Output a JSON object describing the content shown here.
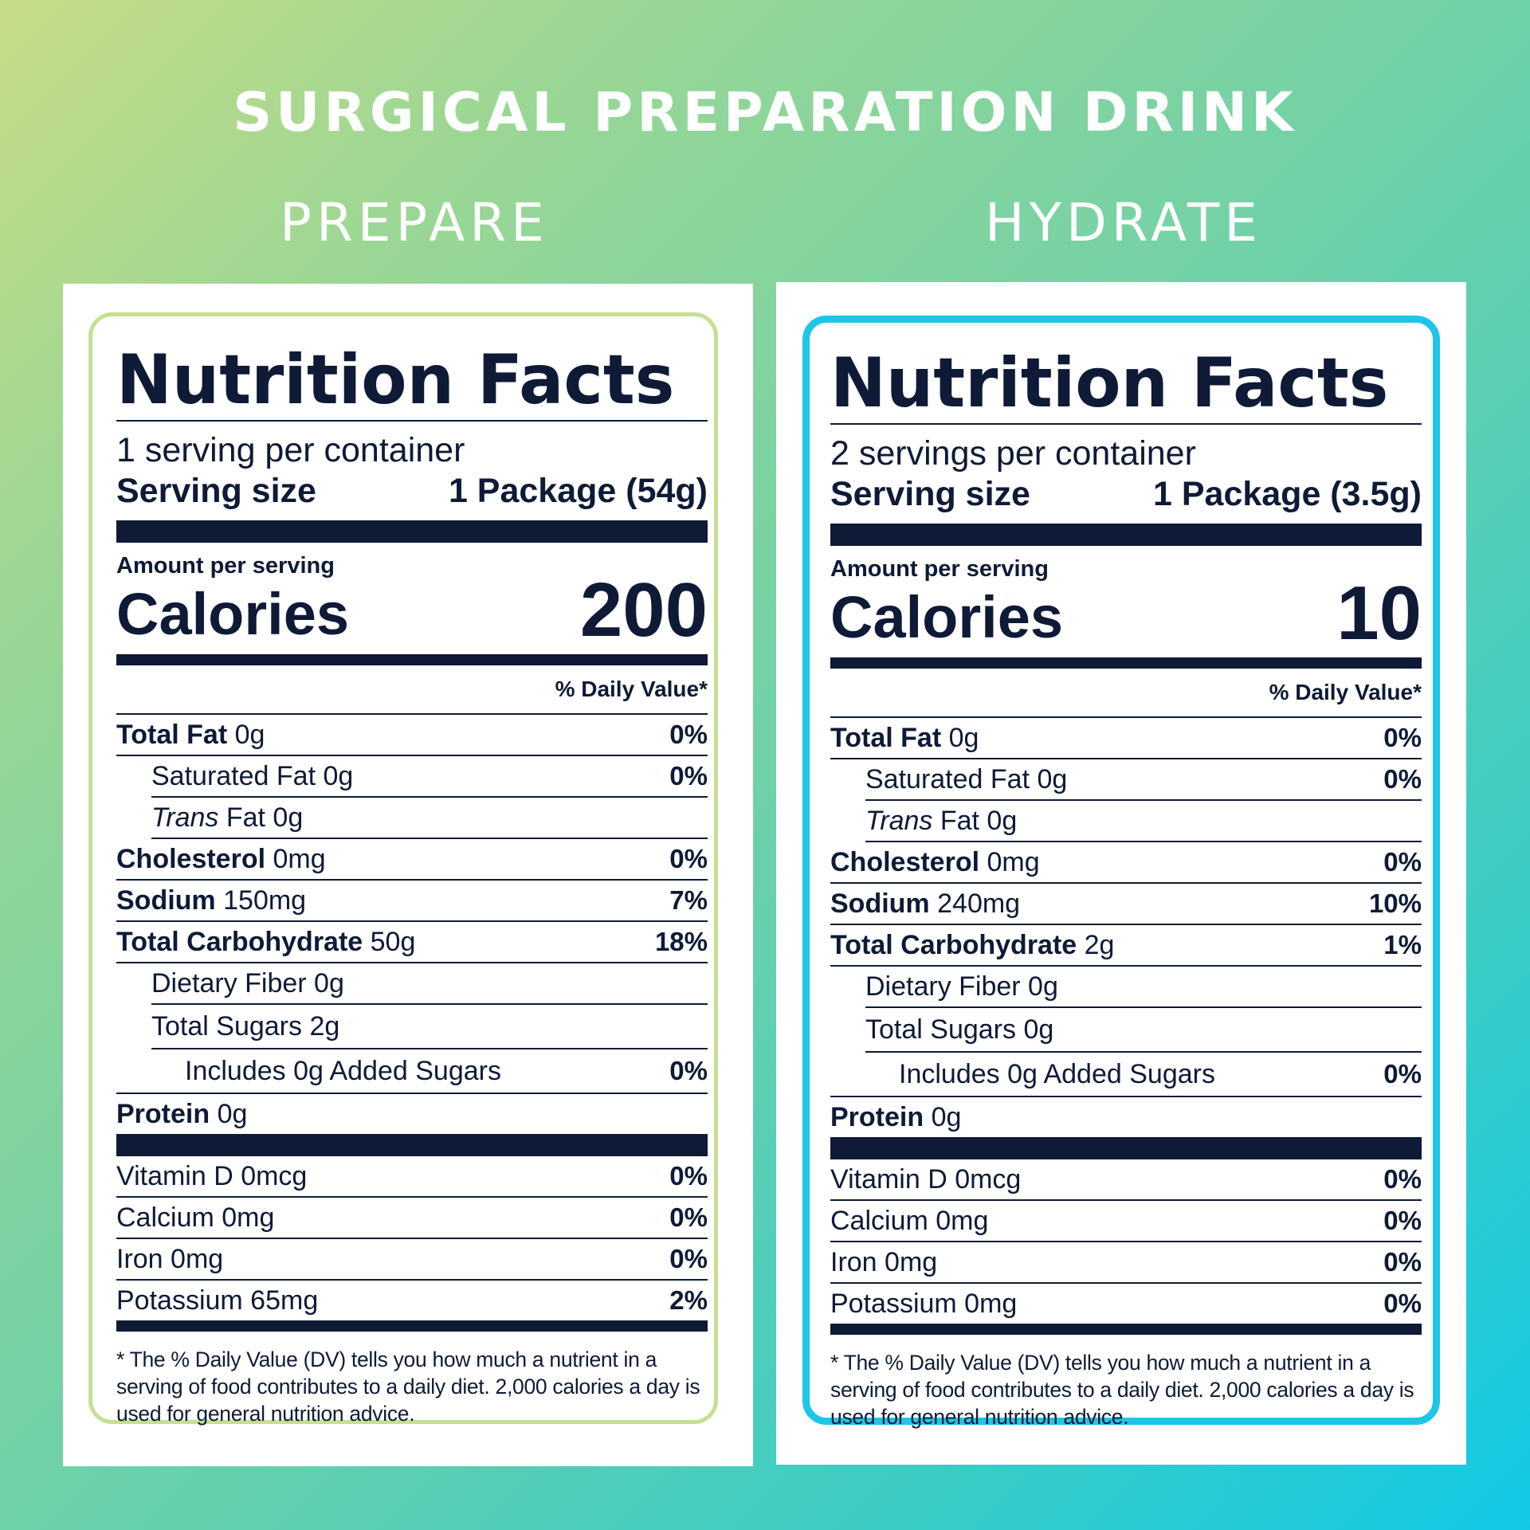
{
  "header": {
    "title": "SURGICAL PREPARATION DRINK"
  },
  "labels": [
    {
      "column_title": "PREPARE",
      "nf_title": "Nutrition Facts",
      "servings_per_container": "1 serving per container",
      "serving_size_label": "Serving size",
      "serving_size_value": "1 Package (54g)",
      "amount_per_serving": "Amount per serving",
      "calories_label": "Calories",
      "calories_value": "200",
      "daily_value_header": "% Daily Value*",
      "rows": {
        "total_fat": {
          "name": "Total Fat",
          "amount": "0g",
          "dv": "0%"
        },
        "saturated_fat": {
          "name": "Saturated Fat 0g",
          "dv": "0%"
        },
        "trans_fat": {
          "name_italic": "Trans",
          "name_rest": " Fat 0g"
        },
        "cholesterol": {
          "name": "Cholesterol",
          "amount": "0mg",
          "dv": "0%"
        },
        "sodium": {
          "name": "Sodium",
          "amount": "150mg",
          "dv": "7%"
        },
        "total_carbohydrate": {
          "name": "Total Carbohydrate",
          "amount": "50g",
          "dv": "18%"
        },
        "dietary_fiber": {
          "name": "Dietary Fiber 0g"
        },
        "total_sugars": {
          "name": "Total Sugars 2g"
        },
        "added_sugars": {
          "name": "Includes 0g Added Sugars",
          "dv": "0%"
        },
        "protein": {
          "name": "Protein",
          "amount": "0g"
        },
        "vitamin_d": {
          "name": "Vitamin D 0mcg",
          "dv": "0%"
        },
        "calcium": {
          "name": "Calcium 0mg",
          "dv": "0%"
        },
        "iron": {
          "name": "Iron 0mg",
          "dv": "0%"
        },
        "potassium": {
          "name": "Potassium 65mg",
          "dv": "2%"
        }
      },
      "footnote": "* The % Daily Value (DV) tells you how much a nutrient in a serving of food contributes to a daily diet. 2,000 calories a day is used for general nutrition advice.",
      "border_color": "#c6df92"
    },
    {
      "column_title": "HYDRATE",
      "nf_title": "Nutrition Facts",
      "servings_per_container": "2 servings per container",
      "serving_size_label": "Serving size",
      "serving_size_value": "1 Package (3.5g)",
      "amount_per_serving": "Amount per serving",
      "calories_label": "Calories",
      "calories_value": "10",
      "daily_value_header": "% Daily Value*",
      "rows": {
        "total_fat": {
          "name": "Total Fat",
          "amount": "0g",
          "dv": "0%"
        },
        "saturated_fat": {
          "name": "Saturated Fat 0g",
          "dv": "0%"
        },
        "trans_fat": {
          "name_italic": "Trans",
          "name_rest": " Fat 0g"
        },
        "cholesterol": {
          "name": "Cholesterol",
          "amount": "0mg",
          "dv": "0%"
        },
        "sodium": {
          "name": "Sodium",
          "amount": "240mg",
          "dv": "10%"
        },
        "total_carbohydrate": {
          "name": "Total Carbohydrate",
          "amount": "2g",
          "dv": "1%"
        },
        "dietary_fiber": {
          "name": "Dietary Fiber 0g"
        },
        "total_sugars": {
          "name": "Total Sugars 0g"
        },
        "added_sugars": {
          "name": "Includes 0g Added Sugars",
          "dv": "0%"
        },
        "protein": {
          "name": "Protein",
          "amount": "0g"
        },
        "vitamin_d": {
          "name": "Vitamin D 0mcg",
          "dv": "0%"
        },
        "calcium": {
          "name": "Calcium 0mg",
          "dv": "0%"
        },
        "iron": {
          "name": "Iron 0mg",
          "dv": "0%"
        },
        "potassium": {
          "name": "Potassium 0mg",
          "dv": "0%"
        }
      },
      "footnote": "* The % Daily Value (DV) tells you how much a nutrient in a serving of food contributes to a daily diet. 2,000 calories a day is used for general nutrition advice.",
      "border_color": "#1ec6e8"
    }
  ],
  "colors": {
    "text_dark": "#0e1a36",
    "background_gradient_start": "#c6dc86",
    "background_gradient_end": "#11c9e6",
    "heading_text": "#ffffff"
  }
}
